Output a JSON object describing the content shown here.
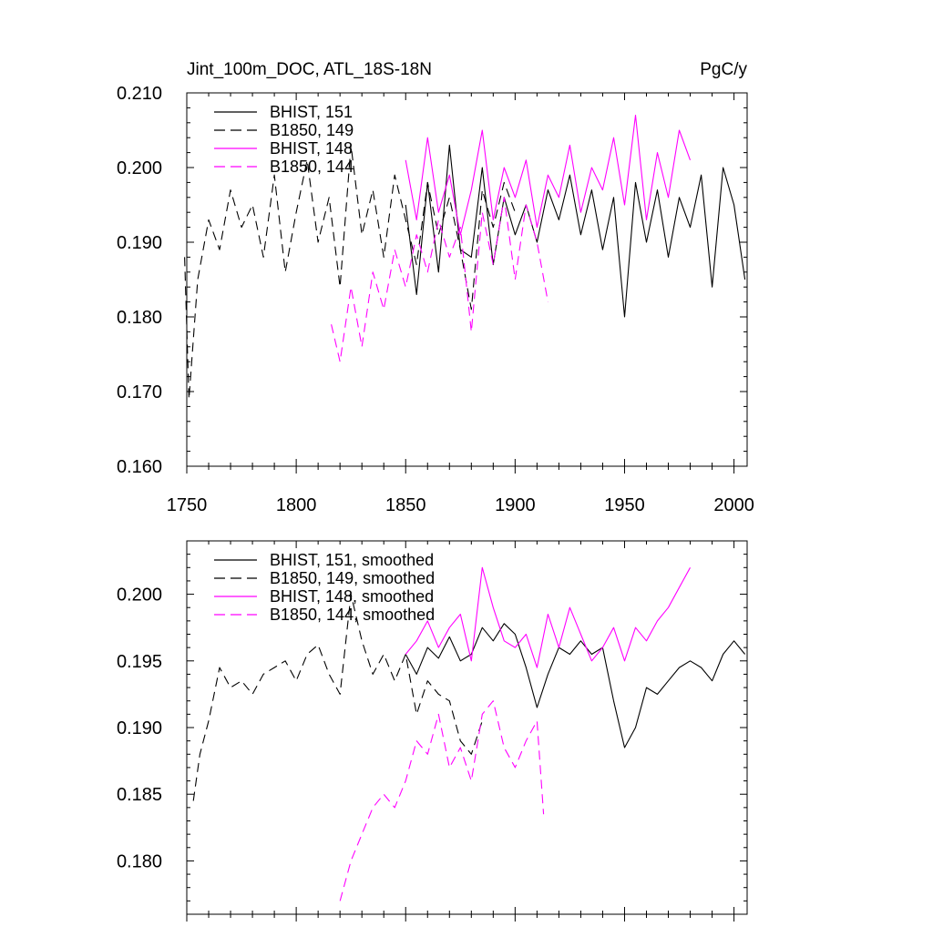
{
  "header": {
    "title_left": "Jint_100m_DOC, ATL_18S-18N",
    "title_right": "PgC/y"
  },
  "colors": {
    "black": "#000000",
    "magenta": "#ff00ff"
  },
  "chart_data": [
    {
      "type": "line",
      "title": "Jint_100m_DOC, ATL_18S-18N",
      "units": "PgC/y",
      "xlim": [
        1750,
        2006
      ],
      "ylim": [
        0.16,
        0.21
      ],
      "x_ticks": [
        "1750",
        "1800",
        "1850",
        "1900",
        "1950",
        "2000"
      ],
      "y_ticks": [
        "0.160",
        "0.170",
        "0.180",
        "0.190",
        "0.200",
        "0.210"
      ],
      "series": [
        {
          "name": "BHIST, 151",
          "color": "#000000",
          "dash": "solid",
          "x": [
            1850,
            1855,
            1860,
            1865,
            1870,
            1875,
            1880,
            1885,
            1890,
            1895,
            1900,
            1905,
            1910,
            1915,
            1920,
            1925,
            1930,
            1935,
            1940,
            1945,
            1950,
            1955,
            1960,
            1965,
            1970,
            1975,
            1980,
            1985,
            1990,
            1995,
            2000,
            2005
          ],
          "y": [
            0.195,
            0.183,
            0.198,
            0.186,
            0.203,
            0.189,
            0.188,
            0.2,
            0.187,
            0.196,
            0.191,
            0.195,
            0.19,
            0.197,
            0.193,
            0.199,
            0.191,
            0.197,
            0.189,
            0.196,
            0.18,
            0.198,
            0.19,
            0.197,
            0.188,
            0.196,
            0.192,
            0.199,
            0.184,
            0.2,
            0.195,
            0.185
          ]
        },
        {
          "name": "B1850, 149",
          "color": "#000000",
          "dash": "dashed",
          "x": [
            1749,
            1751,
            1755,
            1760,
            1765,
            1770,
            1775,
            1780,
            1785,
            1790,
            1795,
            1800,
            1805,
            1810,
            1815,
            1820,
            1825,
            1830,
            1835,
            1840,
            1845,
            1850,
            1855,
            1860,
            1865,
            1870,
            1875,
            1880,
            1885,
            1890,
            1895,
            1900
          ],
          "y": [
            0.188,
            0.169,
            0.185,
            0.193,
            0.189,
            0.197,
            0.192,
            0.195,
            0.188,
            0.199,
            0.186,
            0.194,
            0.201,
            0.19,
            0.196,
            0.184,
            0.203,
            0.191,
            0.197,
            0.188,
            0.199,
            0.193,
            0.187,
            0.198,
            0.191,
            0.196,
            0.189,
            0.181,
            0.197,
            0.192,
            0.198,
            0.194
          ]
        },
        {
          "name": "BHIST, 148",
          "color": "#ff00ff",
          "dash": "solid",
          "x": [
            1850,
            1855,
            1860,
            1865,
            1870,
            1875,
            1880,
            1885,
            1890,
            1895,
            1900,
            1905,
            1910,
            1915,
            1920,
            1925,
            1930,
            1935,
            1940,
            1945,
            1950,
            1955,
            1960,
            1965,
            1970,
            1975,
            1980
          ],
          "y": [
            0.201,
            0.193,
            0.204,
            0.194,
            0.199,
            0.191,
            0.197,
            0.205,
            0.193,
            0.2,
            0.196,
            0.201,
            0.192,
            0.199,
            0.196,
            0.203,
            0.194,
            0.2,
            0.197,
            0.204,
            0.195,
            0.207,
            0.193,
            0.202,
            0.196,
            0.205,
            0.201
          ]
        },
        {
          "name": "B1850, 144",
          "color": "#ff00ff",
          "dash": "dashed",
          "x": [
            1816,
            1820,
            1825,
            1830,
            1835,
            1840,
            1845,
            1850,
            1855,
            1860,
            1865,
            1870,
            1875,
            1880,
            1885,
            1890,
            1895,
            1900,
            1905,
            1910,
            1915
          ],
          "y": [
            0.179,
            0.174,
            0.184,
            0.176,
            0.186,
            0.181,
            0.189,
            0.184,
            0.191,
            0.186,
            0.193,
            0.188,
            0.192,
            0.178,
            0.194,
            0.187,
            0.196,
            0.185,
            0.195,
            0.19,
            0.182
          ]
        }
      ]
    },
    {
      "type": "line",
      "xlim": [
        1750,
        2006
      ],
      "ylim": [
        0.176,
        0.204
      ],
      "y_ticks": [
        "0.180",
        "0.185",
        "0.190",
        "0.195",
        "0.200"
      ],
      "series": [
        {
          "name": "BHIST, 151, smoothed",
          "color": "#000000",
          "dash": "solid",
          "x": [
            1850,
            1855,
            1860,
            1865,
            1870,
            1875,
            1880,
            1885,
            1890,
            1895,
            1900,
            1905,
            1910,
            1915,
            1920,
            1925,
            1930,
            1935,
            1940,
            1945,
            1950,
            1955,
            1960,
            1965,
            1970,
            1975,
            1980,
            1985,
            1990,
            1995,
            2000,
            2005
          ],
          "y": [
            0.1955,
            0.194,
            0.196,
            0.1952,
            0.1968,
            0.195,
            0.1955,
            0.1975,
            0.1965,
            0.1978,
            0.197,
            0.1945,
            0.1915,
            0.194,
            0.196,
            0.1955,
            0.1965,
            0.1955,
            0.196,
            0.192,
            0.1885,
            0.19,
            0.193,
            0.1925,
            0.1935,
            0.1945,
            0.195,
            0.1945,
            0.1935,
            0.1955,
            0.1965,
            0.1955
          ]
        },
        {
          "name": "B1850, 149, smoothed",
          "color": "#000000",
          "dash": "dashed",
          "x": [
            1753,
            1756,
            1760,
            1765,
            1770,
            1775,
            1780,
            1785,
            1790,
            1795,
            1800,
            1805,
            1810,
            1815,
            1820,
            1825,
            1830,
            1835,
            1840,
            1845,
            1850,
            1855,
            1860,
            1865,
            1870,
            1875,
            1880,
            1885
          ],
          "y": [
            0.1845,
            0.188,
            0.1905,
            0.1945,
            0.193,
            0.1935,
            0.1925,
            0.194,
            0.1945,
            0.195,
            0.1935,
            0.1955,
            0.1962,
            0.194,
            0.1925,
            0.2,
            0.1965,
            0.194,
            0.1955,
            0.1935,
            0.1955,
            0.191,
            0.1935,
            0.1925,
            0.192,
            0.189,
            0.188,
            0.1905
          ]
        },
        {
          "name": "BHIST, 148, smoothed",
          "color": "#ff00ff",
          "dash": "solid",
          "x": [
            1850,
            1855,
            1860,
            1865,
            1870,
            1875,
            1880,
            1885,
            1890,
            1895,
            1900,
            1905,
            1910,
            1915,
            1920,
            1925,
            1930,
            1935,
            1940,
            1945,
            1950,
            1955,
            1960,
            1965,
            1970,
            1975,
            1980
          ],
          "y": [
            0.1955,
            0.1965,
            0.198,
            0.196,
            0.1975,
            0.1985,
            0.195,
            0.202,
            0.199,
            0.1965,
            0.196,
            0.197,
            0.1945,
            0.1985,
            0.196,
            0.199,
            0.197,
            0.195,
            0.196,
            0.1975,
            0.195,
            0.1975,
            0.1965,
            0.198,
            0.199,
            0.2005,
            0.202
          ]
        },
        {
          "name": "B1850, 144, smoothed",
          "color": "#ff00ff",
          "dash": "dashed",
          "x": [
            1820,
            1825,
            1830,
            1835,
            1840,
            1845,
            1850,
            1855,
            1860,
            1865,
            1870,
            1875,
            1880,
            1885,
            1890,
            1895,
            1900,
            1905,
            1910,
            1913
          ],
          "y": [
            0.177,
            0.18,
            0.182,
            0.184,
            0.185,
            0.184,
            0.186,
            0.189,
            0.188,
            0.191,
            0.187,
            0.1885,
            0.186,
            0.191,
            0.192,
            0.1885,
            0.187,
            0.189,
            0.1905,
            0.1835
          ]
        }
      ]
    }
  ]
}
